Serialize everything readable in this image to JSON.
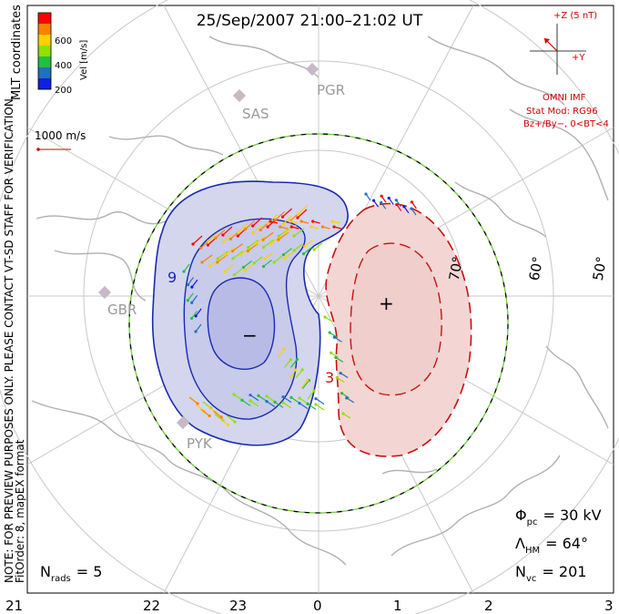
{
  "title": "25/Sep/2007 21:00–21:02 UT",
  "coordinate_system": "MLT coordinates",
  "colorbar": {
    "label": "Vel [m/s]",
    "ticks": [
      "600",
      "400",
      "200"
    ],
    "colors": [
      "#ff0000",
      "#ff8000",
      "#ffd000",
      "#90e000",
      "#20c040",
      "#2070c0",
      "#1020e0"
    ]
  },
  "velocity_scale": {
    "label": "1000 m/s"
  },
  "imf": {
    "z_label": "+Z (5 nT)",
    "y_label": "+Y",
    "source": "OMNI IMF",
    "stat_mod": "Stat Mod: RG96",
    "condition": "Bz+/By−, 0<BT<4"
  },
  "notes": {
    "preview": "NOTE: FOR PREVIEW PURPOSES ONLY. PLEASE CONTACT VT-SD STAFF FOR VERIFICATION.",
    "fit": "FitOrder: 8, mapEX format"
  },
  "latitude_labels": [
    "70°",
    "60°",
    "50°"
  ],
  "stations": [
    "PGR",
    "SAS",
    "GBR",
    "PYK"
  ],
  "contour_labels": {
    "neg_label": "9",
    "pos_label": "3"
  },
  "polarity": {
    "neg": "−",
    "pos": "+"
  },
  "stats": {
    "phi_pc": {
      "symbol": "Φ",
      "sub": "pc",
      "value": "= 30 kV"
    },
    "lambda_hm": {
      "symbol": "Λ",
      "sub": "HM",
      "value": "= 64°"
    },
    "n_vc": {
      "symbol": "N",
      "sub": "vc",
      "value": "= 201"
    },
    "n_rads": {
      "symbol": "N",
      "sub": "rads",
      "value": "= 5"
    }
  },
  "mlt_axis": [
    "21",
    "22",
    "23",
    "0",
    "1",
    "2",
    "3"
  ],
  "colors": {
    "neg_fill": "#d4d6ee",
    "neg_fill_inner": "#b8bbe6",
    "neg_line": "#1a2ab0",
    "pos_fill": "#f3d6d4",
    "pos_line": "#c81010",
    "land": "#b0b0b0",
    "grid": "#cccccc",
    "hmb": "#6fcf3a"
  }
}
